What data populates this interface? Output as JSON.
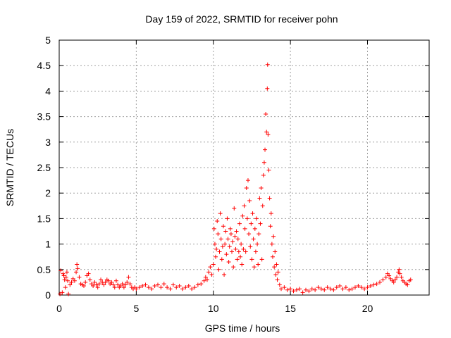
{
  "chart_data": {
    "type": "scatter",
    "title": "Day 159 of 2022, SRMTID for receiver pohn",
    "xlabel": "GPS time / hours",
    "ylabel": "SRMTID / TECUs",
    "xlim": [
      0,
      24
    ],
    "ylim": [
      0,
      5
    ],
    "grid": true,
    "marker": "plus",
    "marker_color": "#ff0000",
    "x_ticks": [
      0,
      5,
      10,
      15,
      20
    ],
    "x_tick_labels": [
      "0",
      "5",
      "10",
      "15",
      "20"
    ],
    "y_ticks": [
      0,
      0.5,
      1,
      1.5,
      2,
      2.5,
      3,
      3.5,
      4,
      4.5,
      5
    ],
    "y_tick_labels": [
      "0",
      "0.5",
      "1",
      "1.5",
      "2",
      "2.5",
      "3",
      "3.5",
      "4",
      "4.5",
      "5"
    ],
    "series": [
      {
        "name": "SRMTID",
        "points": [
          [
            0.05,
            0.02
          ],
          [
            0.1,
            0.48
          ],
          [
            0.2,
            0.05
          ],
          [
            0.25,
            0.42
          ],
          [
            0.3,
            0.38
          ],
          [
            0.35,
            0.3
          ],
          [
            0.4,
            0.15
          ],
          [
            0.45,
            0.35
          ],
          [
            0.5,
            0.45
          ],
          [
            0.55,
            0.28
          ],
          [
            0.6,
            0.02
          ],
          [
            0.7,
            0.2
          ],
          [
            0.8,
            0.25
          ],
          [
            0.9,
            0.32
          ],
          [
            1.0,
            0.28
          ],
          [
            1.1,
            0.45
          ],
          [
            1.15,
            0.6
          ],
          [
            1.2,
            0.52
          ],
          [
            1.3,
            0.35
          ],
          [
            1.4,
            0.22
          ],
          [
            1.5,
            0.2
          ],
          [
            1.6,
            0.18
          ],
          [
            1.7,
            0.25
          ],
          [
            1.8,
            0.38
          ],
          [
            1.9,
            0.42
          ],
          [
            2.0,
            0.3
          ],
          [
            2.1,
            0.22
          ],
          [
            2.2,
            0.18
          ],
          [
            2.3,
            0.25
          ],
          [
            2.4,
            0.2
          ],
          [
            2.5,
            0.15
          ],
          [
            2.6,
            0.22
          ],
          [
            2.7,
            0.3
          ],
          [
            2.8,
            0.25
          ],
          [
            2.9,
            0.2
          ],
          [
            3.0,
            0.25
          ],
          [
            3.1,
            0.3
          ],
          [
            3.2,
            0.28
          ],
          [
            3.3,
            0.22
          ],
          [
            3.4,
            0.25
          ],
          [
            3.5,
            0.2
          ],
          [
            3.6,
            0.15
          ],
          [
            3.7,
            0.28
          ],
          [
            3.8,
            0.2
          ],
          [
            3.9,
            0.15
          ],
          [
            4.0,
            0.18
          ],
          [
            4.1,
            0.22
          ],
          [
            4.2,
            0.15
          ],
          [
            4.3,
            0.2
          ],
          [
            4.4,
            0.25
          ],
          [
            4.5,
            0.35
          ],
          [
            4.6,
            0.22
          ],
          [
            4.7,
            0.15
          ],
          [
            4.8,
            0.12
          ],
          [
            4.9,
            0.15
          ],
          [
            5.0,
            0.12
          ],
          [
            5.2,
            0.15
          ],
          [
            5.4,
            0.18
          ],
          [
            5.6,
            0.2
          ],
          [
            5.8,
            0.15
          ],
          [
            6.0,
            0.12
          ],
          [
            6.2,
            0.18
          ],
          [
            6.4,
            0.2
          ],
          [
            6.6,
            0.15
          ],
          [
            6.8,
            0.22
          ],
          [
            7.0,
            0.15
          ],
          [
            7.2,
            0.12
          ],
          [
            7.4,
            0.2
          ],
          [
            7.6,
            0.15
          ],
          [
            7.8,
            0.18
          ],
          [
            8.0,
            0.12
          ],
          [
            8.2,
            0.15
          ],
          [
            8.4,
            0.18
          ],
          [
            8.6,
            0.12
          ],
          [
            8.8,
            0.15
          ],
          [
            9.0,
            0.2
          ],
          [
            9.2,
            0.22
          ],
          [
            9.4,
            0.28
          ],
          [
            9.5,
            0.35
          ],
          [
            9.6,
            0.3
          ],
          [
            9.7,
            0.45
          ],
          [
            9.8,
            0.55
          ],
          [
            9.9,
            0.4
          ],
          [
            10.0,
            0.6
          ],
          [
            10.05,
            1.3
          ],
          [
            10.1,
            1.0
          ],
          [
            10.15,
            0.75
          ],
          [
            10.2,
            0.9
          ],
          [
            10.25,
            1.45
          ],
          [
            10.3,
            1.2
          ],
          [
            10.35,
            0.5
          ],
          [
            10.4,
            0.85
          ],
          [
            10.45,
            1.6
          ],
          [
            10.5,
            1.1
          ],
          [
            10.55,
            0.7
          ],
          [
            10.6,
            0.95
          ],
          [
            10.65,
            1.35
          ],
          [
            10.7,
            0.4
          ],
          [
            10.75,
            1.0
          ],
          [
            10.8,
            1.25
          ],
          [
            10.85,
            0.8
          ],
          [
            10.9,
            1.5
          ],
          [
            10.95,
            1.1
          ],
          [
            11.0,
            0.65
          ],
          [
            11.05,
            0.95
          ],
          [
            11.1,
            1.3
          ],
          [
            11.15,
            1.2
          ],
          [
            11.2,
            0.85
          ],
          [
            11.25,
            1.05
          ],
          [
            11.3,
            0.55
          ],
          [
            11.35,
            1.7
          ],
          [
            11.4,
            1.15
          ],
          [
            11.45,
            0.9
          ],
          [
            11.5,
            1.25
          ],
          [
            11.55,
            0.7
          ],
          [
            11.6,
            1.1
          ],
          [
            11.65,
            0.85
          ],
          [
            11.7,
            1.4
          ],
          [
            11.75,
            0.75
          ],
          [
            11.8,
            1.0
          ],
          [
            11.85,
            0.6
          ],
          [
            11.9,
            1.55
          ],
          [
            11.95,
            0.9
          ],
          [
            12.0,
            1.75
          ],
          [
            12.05,
            1.3
          ],
          [
            12.1,
            0.85
          ],
          [
            12.15,
            2.1
          ],
          [
            12.2,
            1.5
          ],
          [
            12.25,
            2.25
          ],
          [
            12.3,
            1.2
          ],
          [
            12.35,
            1.85
          ],
          [
            12.4,
            0.95
          ],
          [
            12.45,
            1.4
          ],
          [
            12.5,
            0.7
          ],
          [
            12.55,
            1.6
          ],
          [
            12.6,
            1.1
          ],
          [
            12.65,
            0.55
          ],
          [
            12.7,
            1.3
          ],
          [
            12.75,
            0.85
          ],
          [
            12.8,
            1.5
          ],
          [
            12.85,
            1.0
          ],
          [
            12.9,
            0.6
          ],
          [
            12.95,
            1.2
          ],
          [
            13.0,
            1.9
          ],
          [
            13.05,
            1.4
          ],
          [
            13.1,
            2.1
          ],
          [
            13.15,
            0.7
          ],
          [
            13.2,
            1.75
          ],
          [
            13.25,
            2.35
          ],
          [
            13.3,
            2.6
          ],
          [
            13.35,
            2.85
          ],
          [
            13.4,
            3.55
          ],
          [
            13.45,
            3.2
          ],
          [
            13.5,
            4.05
          ],
          [
            13.52,
            4.52
          ],
          [
            13.55,
            3.15
          ],
          [
            13.6,
            2.45
          ],
          [
            13.65,
            1.9
          ],
          [
            13.7,
            1.35
          ],
          [
            13.75,
            1.6
          ],
          [
            13.8,
            1.0
          ],
          [
            13.85,
            0.75
          ],
          [
            13.9,
            1.15
          ],
          [
            13.95,
            0.55
          ],
          [
            14.0,
            0.85
          ],
          [
            14.05,
            0.4
          ],
          [
            14.1,
            0.6
          ],
          [
            14.15,
            0.3
          ],
          [
            14.2,
            0.45
          ],
          [
            14.3,
            0.2
          ],
          [
            14.4,
            0.12
          ],
          [
            14.6,
            0.15
          ],
          [
            14.8,
            0.1
          ],
          [
            15.0,
            0.12
          ],
          [
            15.2,
            0.08
          ],
          [
            15.4,
            0.1
          ],
          [
            15.6,
            0.12
          ],
          [
            15.8,
            0.05
          ],
          [
            16.0,
            0.1
          ],
          [
            16.2,
            0.08
          ],
          [
            16.4,
            0.12
          ],
          [
            16.6,
            0.1
          ],
          [
            16.8,
            0.15
          ],
          [
            17.0,
            0.12
          ],
          [
            17.2,
            0.1
          ],
          [
            17.4,
            0.15
          ],
          [
            17.6,
            0.12
          ],
          [
            17.8,
            0.1
          ],
          [
            18.0,
            0.15
          ],
          [
            18.2,
            0.18
          ],
          [
            18.4,
            0.12
          ],
          [
            18.6,
            0.15
          ],
          [
            18.8,
            0.1
          ],
          [
            19.0,
            0.12
          ],
          [
            19.2,
            0.15
          ],
          [
            19.4,
            0.18
          ],
          [
            19.6,
            0.15
          ],
          [
            19.8,
            0.12
          ],
          [
            20.0,
            0.15
          ],
          [
            20.2,
            0.18
          ],
          [
            20.4,
            0.2
          ],
          [
            20.6,
            0.22
          ],
          [
            20.8,
            0.25
          ],
          [
            21.0,
            0.3
          ],
          [
            21.2,
            0.35
          ],
          [
            21.3,
            0.42
          ],
          [
            21.4,
            0.38
          ],
          [
            21.5,
            0.32
          ],
          [
            21.6,
            0.28
          ],
          [
            21.7,
            0.25
          ],
          [
            21.8,
            0.3
          ],
          [
            21.9,
            0.35
          ],
          [
            22.0,
            0.45
          ],
          [
            22.05,
            0.5
          ],
          [
            22.1,
            0.42
          ],
          [
            22.2,
            0.35
          ],
          [
            22.3,
            0.28
          ],
          [
            22.4,
            0.25
          ],
          [
            22.5,
            0.22
          ],
          [
            22.6,
            0.2
          ],
          [
            22.7,
            0.28
          ],
          [
            22.8,
            0.3
          ]
        ]
      }
    ]
  }
}
